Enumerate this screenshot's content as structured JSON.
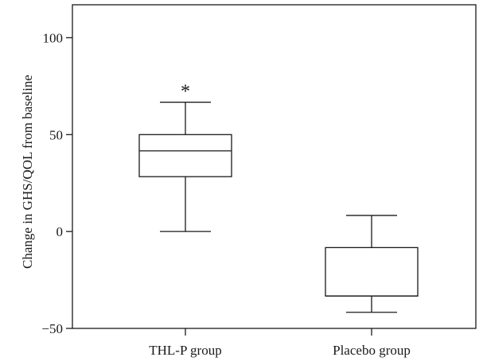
{
  "chart_data": {
    "type": "box",
    "ylabel": "Change in GHS/QOL from baseline",
    "ylim": [
      -50,
      117
    ],
    "yticks": [
      100,
      50,
      0,
      -50
    ],
    "ytick_labels": [
      "100",
      "50",
      "0",
      "−50"
    ],
    "categories": [
      "THL-P group",
      "Placebo group"
    ],
    "boxes": [
      {
        "name": "THL-P group",
        "whisker_low": 0,
        "q1": 28.3,
        "median": 41.6,
        "q3": 50,
        "whisker_high": 66.7,
        "annotation": "*"
      },
      {
        "name": "Placebo group",
        "whisker_low": -41.7,
        "q1": -33.3,
        "median": -33.3,
        "q3": -8.3,
        "whisker_high": 8.3,
        "annotation": ""
      }
    ],
    "grid": false,
    "colors": {
      "line": "#1a1a1a",
      "box_fill": "#ffffff"
    }
  }
}
